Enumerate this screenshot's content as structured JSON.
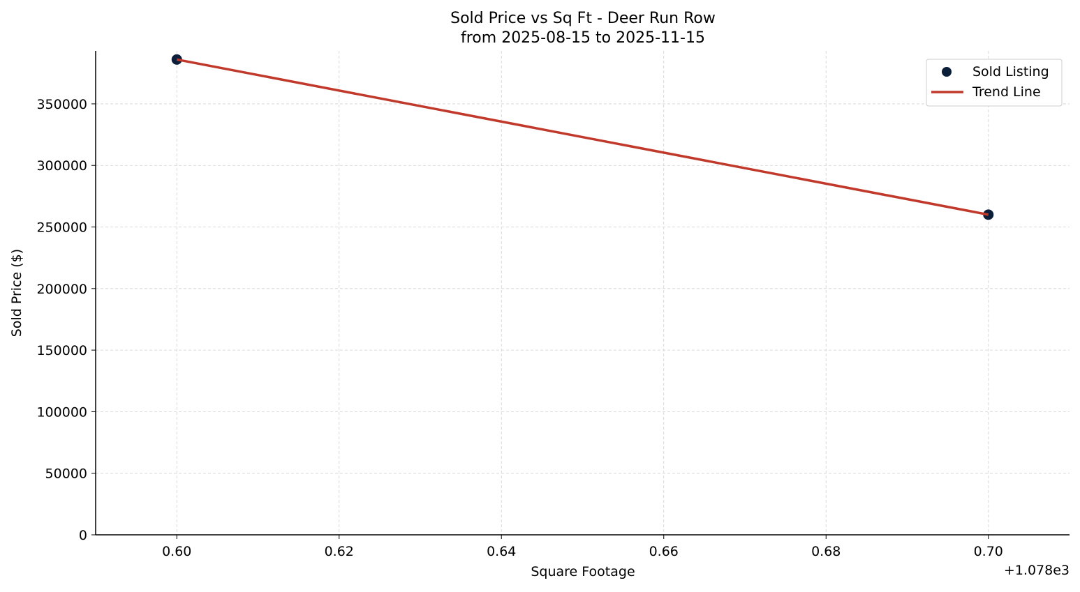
{
  "chart_data": {
    "type": "scatter",
    "title": "Sold Price vs Sq Ft - Deer Run Row",
    "subtitle": "from 2025-08-15 to 2025-11-15",
    "xlabel": "Square Footage",
    "ylabel": "Sold Price ($)",
    "x_offset_label": "+1.078e3",
    "xlim": [
      1078.59,
      1078.71
    ],
    "ylim": [
      0,
      393000
    ],
    "x_ticks": [
      1078.6,
      1078.62,
      1078.64,
      1078.66,
      1078.68,
      1078.7
    ],
    "x_tick_labels": [
      "0.60",
      "0.62",
      "0.64",
      "0.66",
      "0.68",
      "0.70"
    ],
    "y_ticks": [
      0,
      50000,
      100000,
      150000,
      200000,
      250000,
      300000,
      350000
    ],
    "y_tick_labels": [
      "0",
      "50000",
      "100000",
      "150000",
      "200000",
      "250000",
      "300000",
      "350000"
    ],
    "grid": true,
    "legend_position": "top-right",
    "series": [
      {
        "name": "Sold Listing",
        "kind": "scatter",
        "color": "#0b1f3a",
        "x": [
          1078.6,
          1078.7
        ],
        "y": [
          386000,
          260000
        ]
      },
      {
        "name": "Trend Line",
        "kind": "line",
        "color": "#c0392b",
        "x": [
          1078.6,
          1078.7
        ],
        "y": [
          386000,
          260000
        ]
      }
    ]
  }
}
